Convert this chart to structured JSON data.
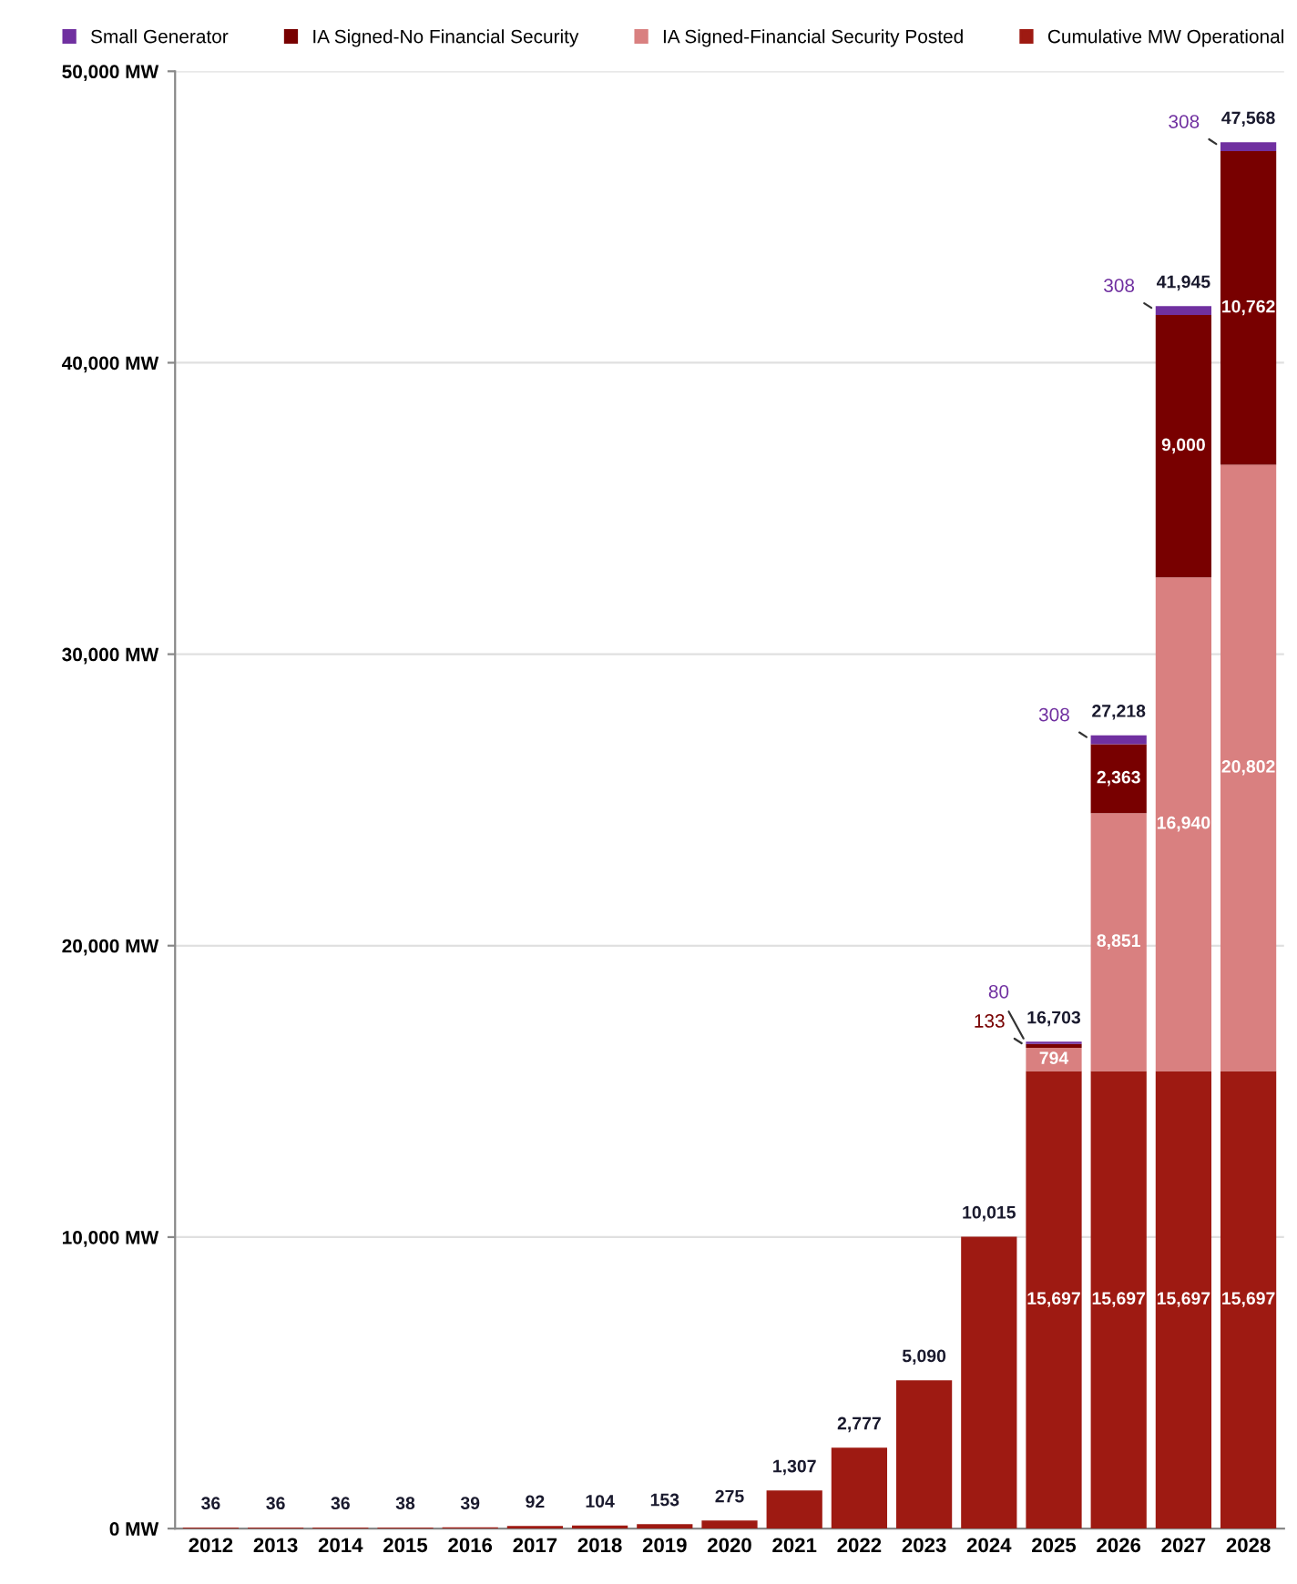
{
  "chart_data": {
    "type": "bar",
    "stacked": true,
    "categories": [
      "2012",
      "2013",
      "2014",
      "2015",
      "2016",
      "2017",
      "2018",
      "2019",
      "2020",
      "2021",
      "2022",
      "2023",
      "2024",
      "2025",
      "2026",
      "2027",
      "2028"
    ],
    "series": [
      {
        "name": "Cumulative MW Operational",
        "color": "#9e1a12",
        "values": [
          36,
          36,
          36,
          38,
          39,
          92,
          104,
          153,
          275,
          1307,
          2777,
          5090,
          10015,
          15697,
          15697,
          15697,
          15697
        ],
        "value_labels": [
          null,
          null,
          null,
          null,
          null,
          null,
          null,
          null,
          null,
          null,
          null,
          null,
          null,
          "15,697",
          "15,697",
          "15,697",
          "15,697"
        ]
      },
      {
        "name": "IA Signed-Financial Security Posted",
        "color": "#d98080",
        "values": [
          null,
          null,
          null,
          null,
          null,
          null,
          null,
          null,
          null,
          null,
          null,
          null,
          null,
          794,
          8851,
          16940,
          20802
        ],
        "value_labels": [
          null,
          null,
          null,
          null,
          null,
          null,
          null,
          null,
          null,
          null,
          null,
          null,
          null,
          "794",
          "8,851",
          "16,940",
          "20,802"
        ]
      },
      {
        "name": "IA Signed-No Financial Security",
        "color": "#780000",
        "values": [
          null,
          null,
          null,
          null,
          null,
          null,
          null,
          null,
          null,
          null,
          null,
          null,
          null,
          133,
          2363,
          9000,
          10762
        ],
        "value_labels": [
          null,
          null,
          null,
          null,
          null,
          null,
          null,
          null,
          null,
          null,
          null,
          null,
          null,
          "133",
          "2,363",
          "9,000",
          "10,762"
        ]
      },
      {
        "name": "Small Generator",
        "color": "#7030a0",
        "values": [
          null,
          null,
          null,
          null,
          null,
          null,
          null,
          null,
          null,
          null,
          null,
          null,
          null,
          80,
          308,
          308,
          308
        ],
        "value_labels": [
          null,
          null,
          null,
          null,
          null,
          null,
          null,
          null,
          null,
          null,
          null,
          null,
          null,
          "80",
          "308",
          "308",
          "308"
        ]
      }
    ],
    "totals": [
      "36",
      "36",
      "36",
      "38",
      "39",
      "92",
      "104",
      "153",
      "275",
      "1,307",
      "2,777",
      "5,090",
      "10,015",
      "16,703",
      "27,218",
      "41,945",
      "47,568"
    ],
    "ylim": [
      0,
      50000
    ],
    "yticks": [
      {
        "value": 0,
        "label": "0 MW"
      },
      {
        "value": 10000,
        "label": "10,000 MW"
      },
      {
        "value": 20000,
        "label": "20,000 MW"
      },
      {
        "value": 30000,
        "label": "30,000 MW"
      },
      {
        "value": 40000,
        "label": "40,000 MW"
      },
      {
        "value": 50000,
        "label": "50,000 MW"
      }
    ],
    "grid": "y",
    "legend": "top"
  }
}
